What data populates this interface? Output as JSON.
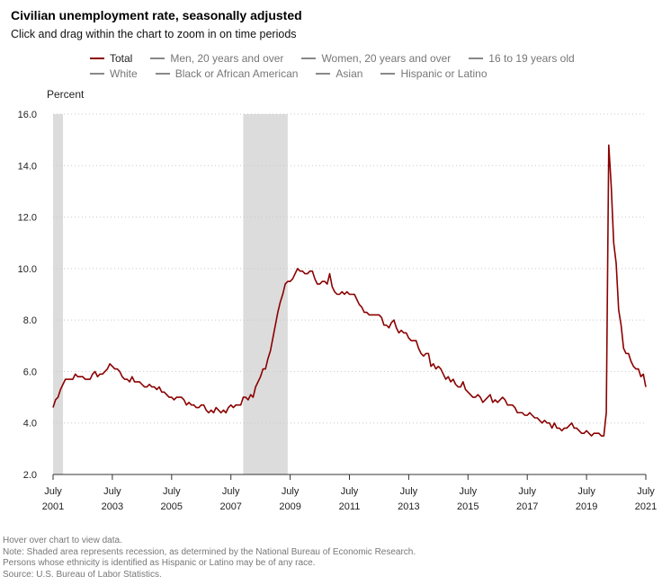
{
  "header": {
    "title": "Civilian unemployment rate, seasonally adjusted",
    "subtitle": "Click and drag within the chart to zoom in on time periods"
  },
  "legend": {
    "row1": [
      {
        "label": "Total",
        "active": true
      },
      {
        "label": "Men, 20 years and over",
        "active": false
      },
      {
        "label": "Women, 20 years and over",
        "active": false
      },
      {
        "label": "16 to 19 years old",
        "active": false
      }
    ],
    "row2": [
      {
        "label": "White",
        "active": false
      },
      {
        "label": "Black or African American",
        "active": false
      },
      {
        "label": "Asian",
        "active": false
      },
      {
        "label": "Hispanic or Latino",
        "active": false
      }
    ]
  },
  "footer": {
    "lines": [
      "Hover over chart to view data.",
      "Note: Shaded area represents recession, as determined by the National Bureau of Economic Research.",
      "Persons whose ethnicity is identified as Hispanic or Latino may be of any race.",
      "Source: U.S. Bureau of Labor Statistics."
    ]
  },
  "colors": {
    "total_line": "#8b0000",
    "recession": "#dcdcdc",
    "grid": "#c8c8c8"
  },
  "chart_data": {
    "type": "line",
    "title": "Civilian unemployment rate, seasonally adjusted",
    "ylabel": "Percent",
    "ylim": [
      2.0,
      16.0
    ],
    "xlim": [
      "2001-07",
      "2021-07"
    ],
    "yticks": [
      "2.0",
      "4.0",
      "6.0",
      "8.0",
      "10.0",
      "12.0",
      "14.0",
      "16.0"
    ],
    "xticks": [
      {
        "month": "July",
        "year": "2001",
        "date": "2001-07"
      },
      {
        "month": "July",
        "year": "2003",
        "date": "2003-07"
      },
      {
        "month": "July",
        "year": "2005",
        "date": "2005-07"
      },
      {
        "month": "July",
        "year": "2007",
        "date": "2007-07"
      },
      {
        "month": "July",
        "year": "2009",
        "date": "2009-07"
      },
      {
        "month": "July",
        "year": "2011",
        "date": "2011-07"
      },
      {
        "month": "July",
        "year": "2013",
        "date": "2013-07"
      },
      {
        "month": "July",
        "year": "2015",
        "date": "2015-07"
      },
      {
        "month": "July",
        "year": "2017",
        "date": "2017-07"
      },
      {
        "month": "July",
        "year": "2019",
        "date": "2019-07"
      },
      {
        "month": "July",
        "year": "2021",
        "date": "2021-07"
      }
    ],
    "grid": "horizontal dotted",
    "legend_position": "top",
    "recessions": [
      {
        "start": "2001-07",
        "end": "2001-11"
      },
      {
        "start": "2007-12",
        "end": "2009-06"
      }
    ],
    "series": [
      {
        "name": "Total",
        "points": [
          [
            "2001-07",
            4.6
          ],
          [
            "2001-08",
            4.9
          ],
          [
            "2001-09",
            5.0
          ],
          [
            "2001-10",
            5.3
          ],
          [
            "2001-11",
            5.5
          ],
          [
            "2001-12",
            5.7
          ],
          [
            "2002-01",
            5.7
          ],
          [
            "2002-02",
            5.7
          ],
          [
            "2002-03",
            5.7
          ],
          [
            "2002-04",
            5.9
          ],
          [
            "2002-05",
            5.8
          ],
          [
            "2002-06",
            5.8
          ],
          [
            "2002-07",
            5.8
          ],
          [
            "2002-08",
            5.7
          ],
          [
            "2002-09",
            5.7
          ],
          [
            "2002-10",
            5.7
          ],
          [
            "2002-11",
            5.9
          ],
          [
            "2002-12",
            6.0
          ],
          [
            "2003-01",
            5.8
          ],
          [
            "2003-02",
            5.9
          ],
          [
            "2003-03",
            5.9
          ],
          [
            "2003-04",
            6.0
          ],
          [
            "2003-05",
            6.1
          ],
          [
            "2003-06",
            6.3
          ],
          [
            "2003-07",
            6.2
          ],
          [
            "2003-08",
            6.1
          ],
          [
            "2003-09",
            6.1
          ],
          [
            "2003-10",
            6.0
          ],
          [
            "2003-11",
            5.8
          ],
          [
            "2003-12",
            5.7
          ],
          [
            "2004-01",
            5.7
          ],
          [
            "2004-02",
            5.6
          ],
          [
            "2004-03",
            5.8
          ],
          [
            "2004-04",
            5.6
          ],
          [
            "2004-05",
            5.6
          ],
          [
            "2004-06",
            5.6
          ],
          [
            "2004-07",
            5.5
          ],
          [
            "2004-08",
            5.4
          ],
          [
            "2004-09",
            5.4
          ],
          [
            "2004-10",
            5.5
          ],
          [
            "2004-11",
            5.4
          ],
          [
            "2004-12",
            5.4
          ],
          [
            "2005-01",
            5.3
          ],
          [
            "2005-02",
            5.4
          ],
          [
            "2005-03",
            5.2
          ],
          [
            "2005-04",
            5.2
          ],
          [
            "2005-05",
            5.1
          ],
          [
            "2005-06",
            5.0
          ],
          [
            "2005-07",
            5.0
          ],
          [
            "2005-08",
            4.9
          ],
          [
            "2005-09",
            5.0
          ],
          [
            "2005-10",
            5.0
          ],
          [
            "2005-11",
            5.0
          ],
          [
            "2005-12",
            4.9
          ],
          [
            "2006-01",
            4.7
          ],
          [
            "2006-02",
            4.8
          ],
          [
            "2006-03",
            4.7
          ],
          [
            "2006-04",
            4.7
          ],
          [
            "2006-05",
            4.6
          ],
          [
            "2006-06",
            4.6
          ],
          [
            "2006-07",
            4.7
          ],
          [
            "2006-08",
            4.7
          ],
          [
            "2006-09",
            4.5
          ],
          [
            "2006-10",
            4.4
          ],
          [
            "2006-11",
            4.5
          ],
          [
            "2006-12",
            4.4
          ],
          [
            "2007-01",
            4.6
          ],
          [
            "2007-02",
            4.5
          ],
          [
            "2007-03",
            4.4
          ],
          [
            "2007-04",
            4.5
          ],
          [
            "2007-05",
            4.4
          ],
          [
            "2007-06",
            4.6
          ],
          [
            "2007-07",
            4.7
          ],
          [
            "2007-08",
            4.6
          ],
          [
            "2007-09",
            4.7
          ],
          [
            "2007-10",
            4.7
          ],
          [
            "2007-11",
            4.7
          ],
          [
            "2007-12",
            5.0
          ],
          [
            "2008-01",
            5.0
          ],
          [
            "2008-02",
            4.9
          ],
          [
            "2008-03",
            5.1
          ],
          [
            "2008-04",
            5.0
          ],
          [
            "2008-05",
            5.4
          ],
          [
            "2008-06",
            5.6
          ],
          [
            "2008-07",
            5.8
          ],
          [
            "2008-08",
            6.1
          ],
          [
            "2008-09",
            6.1
          ],
          [
            "2008-10",
            6.5
          ],
          [
            "2008-11",
            6.8
          ],
          [
            "2008-12",
            7.3
          ],
          [
            "2009-01",
            7.8
          ],
          [
            "2009-02",
            8.3
          ],
          [
            "2009-03",
            8.7
          ],
          [
            "2009-04",
            9.0
          ],
          [
            "2009-05",
            9.4
          ],
          [
            "2009-06",
            9.5
          ],
          [
            "2009-07",
            9.5
          ],
          [
            "2009-08",
            9.6
          ],
          [
            "2009-09",
            9.8
          ],
          [
            "2009-10",
            10.0
          ],
          [
            "2009-11",
            9.9
          ],
          [
            "2009-12",
            9.9
          ],
          [
            "2010-01",
            9.8
          ],
          [
            "2010-02",
            9.8
          ],
          [
            "2010-03",
            9.9
          ],
          [
            "2010-04",
            9.9
          ],
          [
            "2010-05",
            9.6
          ],
          [
            "2010-06",
            9.4
          ],
          [
            "2010-07",
            9.4
          ],
          [
            "2010-08",
            9.5
          ],
          [
            "2010-09",
            9.5
          ],
          [
            "2010-10",
            9.4
          ],
          [
            "2010-11",
            9.8
          ],
          [
            "2010-12",
            9.3
          ],
          [
            "2011-01",
            9.1
          ],
          [
            "2011-02",
            9.0
          ],
          [
            "2011-03",
            9.0
          ],
          [
            "2011-04",
            9.1
          ],
          [
            "2011-05",
            9.0
          ],
          [
            "2011-06",
            9.1
          ],
          [
            "2011-07",
            9.0
          ],
          [
            "2011-08",
            9.0
          ],
          [
            "2011-09",
            9.0
          ],
          [
            "2011-10",
            8.8
          ],
          [
            "2011-11",
            8.6
          ],
          [
            "2011-12",
            8.5
          ],
          [
            "2012-01",
            8.3
          ],
          [
            "2012-02",
            8.3
          ],
          [
            "2012-03",
            8.2
          ],
          [
            "2012-04",
            8.2
          ],
          [
            "2012-05",
            8.2
          ],
          [
            "2012-06",
            8.2
          ],
          [
            "2012-07",
            8.2
          ],
          [
            "2012-08",
            8.1
          ],
          [
            "2012-09",
            7.8
          ],
          [
            "2012-10",
            7.8
          ],
          [
            "2012-11",
            7.7
          ],
          [
            "2012-12",
            7.9
          ],
          [
            "2013-01",
            8.0
          ],
          [
            "2013-02",
            7.7
          ],
          [
            "2013-03",
            7.5
          ],
          [
            "2013-04",
            7.6
          ],
          [
            "2013-05",
            7.5
          ],
          [
            "2013-06",
            7.5
          ],
          [
            "2013-07",
            7.3
          ],
          [
            "2013-08",
            7.2
          ],
          [
            "2013-09",
            7.2
          ],
          [
            "2013-10",
            7.2
          ],
          [
            "2013-11",
            6.9
          ],
          [
            "2013-12",
            6.7
          ],
          [
            "2014-01",
            6.6
          ],
          [
            "2014-02",
            6.7
          ],
          [
            "2014-03",
            6.7
          ],
          [
            "2014-04",
            6.2
          ],
          [
            "2014-05",
            6.3
          ],
          [
            "2014-06",
            6.1
          ],
          [
            "2014-07",
            6.2
          ],
          [
            "2014-08",
            6.1
          ],
          [
            "2014-09",
            5.9
          ],
          [
            "2014-10",
            5.7
          ],
          [
            "2014-11",
            5.8
          ],
          [
            "2014-12",
            5.6
          ],
          [
            "2015-01",
            5.7
          ],
          [
            "2015-02",
            5.5
          ],
          [
            "2015-03",
            5.4
          ],
          [
            "2015-04",
            5.4
          ],
          [
            "2015-05",
            5.6
          ],
          [
            "2015-06",
            5.3
          ],
          [
            "2015-07",
            5.2
          ],
          [
            "2015-08",
            5.1
          ],
          [
            "2015-09",
            5.0
          ],
          [
            "2015-10",
            5.0
          ],
          [
            "2015-11",
            5.1
          ],
          [
            "2015-12",
            5.0
          ],
          [
            "2016-01",
            4.8
          ],
          [
            "2016-02",
            4.9
          ],
          [
            "2016-03",
            5.0
          ],
          [
            "2016-04",
            5.1
          ],
          [
            "2016-05",
            4.8
          ],
          [
            "2016-06",
            4.9
          ],
          [
            "2016-07",
            4.8
          ],
          [
            "2016-08",
            4.9
          ],
          [
            "2016-09",
            5.0
          ],
          [
            "2016-10",
            4.9
          ],
          [
            "2016-11",
            4.7
          ],
          [
            "2016-12",
            4.7
          ],
          [
            "2017-01",
            4.7
          ],
          [
            "2017-02",
            4.6
          ],
          [
            "2017-03",
            4.4
          ],
          [
            "2017-04",
            4.4
          ],
          [
            "2017-05",
            4.4
          ],
          [
            "2017-06",
            4.3
          ],
          [
            "2017-07",
            4.3
          ],
          [
            "2017-08",
            4.4
          ],
          [
            "2017-09",
            4.3
          ],
          [
            "2017-10",
            4.2
          ],
          [
            "2017-11",
            4.2
          ],
          [
            "2017-12",
            4.1
          ],
          [
            "2018-01",
            4.0
          ],
          [
            "2018-02",
            4.1
          ],
          [
            "2018-03",
            4.0
          ],
          [
            "2018-04",
            4.0
          ],
          [
            "2018-05",
            3.8
          ],
          [
            "2018-06",
            4.0
          ],
          [
            "2018-07",
            3.8
          ],
          [
            "2018-08",
            3.8
          ],
          [
            "2018-09",
            3.7
          ],
          [
            "2018-10",
            3.8
          ],
          [
            "2018-11",
            3.8
          ],
          [
            "2018-12",
            3.9
          ],
          [
            "2019-01",
            4.0
          ],
          [
            "2019-02",
            3.8
          ],
          [
            "2019-03",
            3.8
          ],
          [
            "2019-04",
            3.7
          ],
          [
            "2019-05",
            3.6
          ],
          [
            "2019-06",
            3.6
          ],
          [
            "2019-07",
            3.7
          ],
          [
            "2019-08",
            3.6
          ],
          [
            "2019-09",
            3.5
          ],
          [
            "2019-10",
            3.6
          ],
          [
            "2019-11",
            3.6
          ],
          [
            "2019-12",
            3.6
          ],
          [
            "2020-01",
            3.5
          ],
          [
            "2020-02",
            3.5
          ],
          [
            "2020-03",
            4.4
          ],
          [
            "2020-04",
            14.8
          ],
          [
            "2020-05",
            13.2
          ],
          [
            "2020-06",
            11.0
          ],
          [
            "2020-07",
            10.2
          ],
          [
            "2020-08",
            8.4
          ],
          [
            "2020-09",
            7.8
          ],
          [
            "2020-10",
            6.9
          ],
          [
            "2020-11",
            6.7
          ],
          [
            "2020-12",
            6.7
          ],
          [
            "2021-01",
            6.4
          ],
          [
            "2021-02",
            6.2
          ],
          [
            "2021-03",
            6.1
          ],
          [
            "2021-04",
            6.1
          ],
          [
            "2021-05",
            5.8
          ],
          [
            "2021-06",
            5.9
          ],
          [
            "2021-07",
            5.4
          ]
        ]
      }
    ]
  }
}
